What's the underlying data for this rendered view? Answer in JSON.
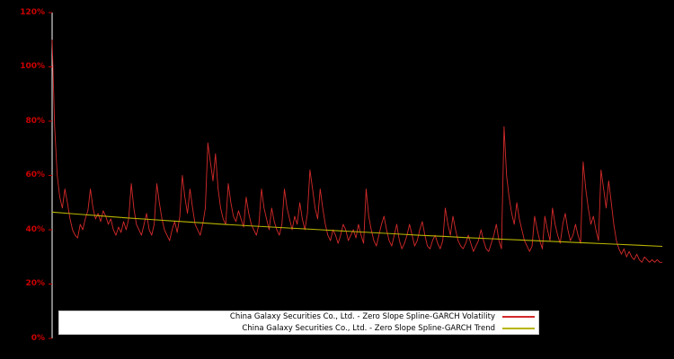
{
  "figure": {
    "background": "#000000",
    "axis_color": "#ffffff",
    "tick_color": "#cc0000"
  },
  "y_axis": {
    "ticks": [
      "0%",
      "20%",
      "40%",
      "60%",
      "80%",
      "100%",
      "120%"
    ]
  },
  "chart_data": {
    "type": "line",
    "title": "",
    "xlabel": "",
    "ylabel": "",
    "ylim": [
      0,
      120
    ],
    "y_unit": "%",
    "grid": false,
    "legend_position": "lower center",
    "series": [
      {
        "name": "China Galaxy Securities Co., Ltd. - Zero Slope Spline-GARCH Volatility",
        "color": "#d42a2a",
        "width": 0.9,
        "values": [
          110,
          78,
          60,
          52,
          48,
          55,
          50,
          44,
          40,
          38,
          37,
          42,
          40,
          44,
          47,
          55,
          48,
          44,
          46,
          43,
          47,
          45,
          42,
          44,
          40,
          38,
          41,
          39,
          43,
          40,
          44,
          57,
          48,
          42,
          40,
          38,
          42,
          46,
          40,
          38,
          42,
          57,
          50,
          44,
          40,
          38,
          36,
          40,
          43,
          39,
          45,
          60,
          52,
          46,
          55,
          48,
          42,
          40,
          38,
          42,
          48,
          72,
          65,
          58,
          68,
          55,
          48,
          44,
          42,
          57,
          50,
          45,
          43,
          47,
          44,
          41,
          52,
          46,
          42,
          40,
          38,
          42,
          55,
          48,
          44,
          40,
          48,
          43,
          40,
          38,
          42,
          55,
          48,
          44,
          40,
          45,
          42,
          50,
          44,
          40,
          46,
          62,
          55,
          48,
          44,
          55,
          48,
          42,
          38,
          36,
          40,
          38,
          35,
          38,
          42,
          40,
          36,
          38,
          40,
          37,
          42,
          38,
          35,
          55,
          45,
          40,
          36,
          34,
          38,
          42,
          45,
          40,
          36,
          34,
          38,
          42,
          36,
          33,
          35,
          38,
          42,
          38,
          34,
          36,
          40,
          43,
          38,
          34,
          33,
          36,
          38,
          35,
          33,
          36,
          48,
          42,
          38,
          45,
          40,
          36,
          34,
          33,
          35,
          38,
          35,
          32,
          34,
          36,
          40,
          36,
          33,
          32,
          35,
          38,
          42,
          36,
          33,
          78,
          60,
          52,
          46,
          42,
          50,
          44,
          40,
          36,
          34,
          32,
          34,
          45,
          40,
          36,
          33,
          45,
          40,
          36,
          48,
          42,
          38,
          35,
          42,
          46,
          40,
          36,
          38,
          42,
          38,
          35,
          65,
          55,
          48,
          42,
          45,
          40,
          36,
          62,
          55,
          48,
          58,
          50,
          42,
          36,
          33,
          31,
          33,
          30,
          32,
          30,
          29,
          31,
          29,
          28,
          30,
          29,
          28,
          29,
          28,
          29,
          28,
          28
        ]
      },
      {
        "name": "China Galaxy Securities Co., Ltd. - Zero Slope Spline-GARCH Trend",
        "color": "#b8b400",
        "width": 1.1,
        "values": [
          46.5,
          45.8,
          45.1,
          44.4,
          43.8,
          43.2,
          42.6,
          42.0,
          41.5,
          41.0,
          40.5,
          40.0,
          39.5,
          39.0,
          38.5,
          38.0,
          37.6,
          37.1,
          36.7,
          36.3,
          35.9,
          35.5,
          35.1,
          34.7,
          34.3,
          33.9
        ]
      }
    ]
  }
}
